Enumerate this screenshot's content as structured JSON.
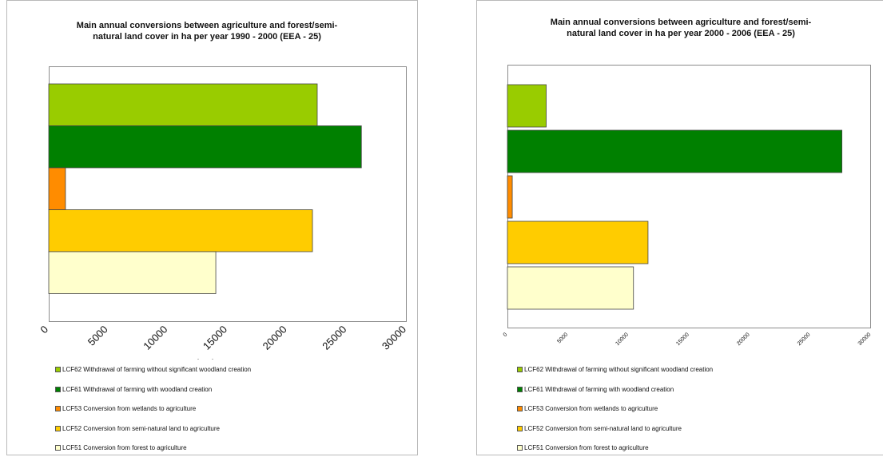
{
  "chart_data": [
    {
      "type": "bar",
      "orientation": "horizontal",
      "title": "Main annual conversions between agriculture and forest/semi-natural land cover in ha per year 1990 - 2000 (EEA - 25)",
      "title_lines": [
        "Main annual conversions  between agriculture  and forest/semi-",
        "natural land cover  in ha per year 1990 - 2000 (EEA - 25)"
      ],
      "categories": [
        "LCF62",
        "LCF61",
        "LCF53",
        "LCF52",
        "LCF51"
      ],
      "values": [
        22500,
        26200,
        1400,
        22100,
        14000
      ],
      "xlim": [
        0,
        30000
      ],
      "xticks": [
        "0",
        "5000",
        "10000",
        "15000",
        "20000",
        "25000",
        "30000"
      ],
      "grid": false,
      "legend_position": "bottom"
    },
    {
      "type": "bar",
      "orientation": "horizontal",
      "title": "Main annual conversions between agriculture and forest/semi-natural land cover in ha per year 2000 - 2006 (EEA - 25)",
      "title_lines": [
        "Main annual conversions  between agriculture  and forest/semi-",
        "natural land cover  in ha per year 2000 - 2006 (EEA - 25)"
      ],
      "categories": [
        "LCF62",
        "LCF61",
        "LCF53",
        "LCF52",
        "LCF51"
      ],
      "values": [
        3200,
        27600,
        400,
        11600,
        10400
      ],
      "xlim": [
        0,
        30000
      ],
      "xticks": [
        "0",
        "5000",
        "10000",
        "15000",
        "20000",
        "25000",
        "30000"
      ],
      "grid": false,
      "legend_position": "bottom"
    }
  ],
  "legend": [
    {
      "label": "LCF62 Withdrawal of farming without significant woodland creation",
      "color": "#99cc00"
    },
    {
      "label": "LCF61 Withdrawal of farming with woodland creation",
      "color": "#008000"
    },
    {
      "label": "LCF53 Conversion from wetlands to agriculture",
      "color": "#ff8c00"
    },
    {
      "label": "LCF52 Conversion from semi-natural land to agriculture",
      "color": "#ffcc00"
    },
    {
      "label": "LCF51 Conversion from forest to agriculture",
      "color": "#ffffcc"
    }
  ],
  "stray_marks": [
    "-",
    "-"
  ]
}
